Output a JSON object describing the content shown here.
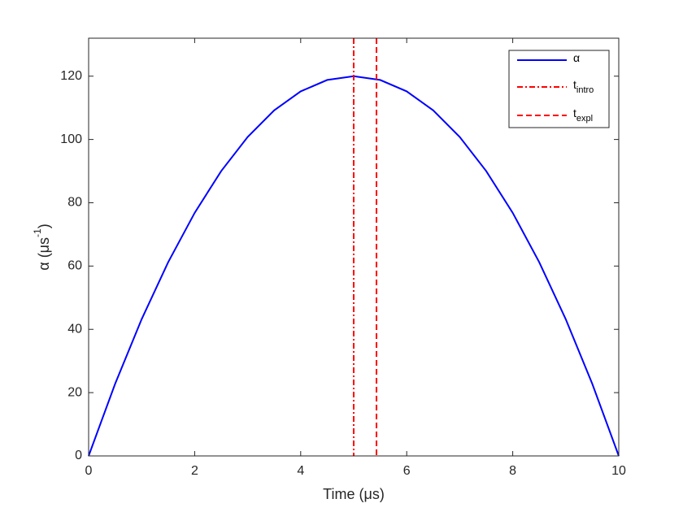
{
  "chart_data": {
    "type": "line",
    "xlabel": "Time (μs)",
    "ylabel": [
      "α (μs",
      "-1",
      ")"
    ],
    "x": [
      0,
      0.5,
      1,
      1.5,
      2,
      2.5,
      3,
      3.5,
      4,
      4.5,
      5,
      5.5,
      6,
      6.5,
      7,
      7.5,
      8,
      8.5,
      9,
      9.5,
      10
    ],
    "series": [
      {
        "name": "α",
        "color": "#0000ff",
        "values": [
          0,
          22.8,
          43.2,
          61.2,
          76.8,
          90,
          100.8,
          109.2,
          115.2,
          118.8,
          120,
          118.8,
          115.2,
          109.2,
          100.8,
          90,
          76.8,
          61.2,
          43.2,
          22.8,
          0
        ]
      }
    ],
    "vlines": [
      {
        "name": "t",
        "sub": "intro",
        "x": 5,
        "color": "#ff0000",
        "dash": "dashdot"
      },
      {
        "name": "t",
        "sub": "expl",
        "x": 5.43,
        "color": "#ff0000",
        "dash": "dashed"
      }
    ],
    "xlim": [
      0,
      10
    ],
    "xticks": [
      0,
      2,
      4,
      6,
      8,
      10
    ],
    "ylim": [
      0,
      132
    ],
    "yticks": [
      0,
      20,
      40,
      60,
      80,
      100,
      120
    ],
    "legend": "upper right"
  }
}
